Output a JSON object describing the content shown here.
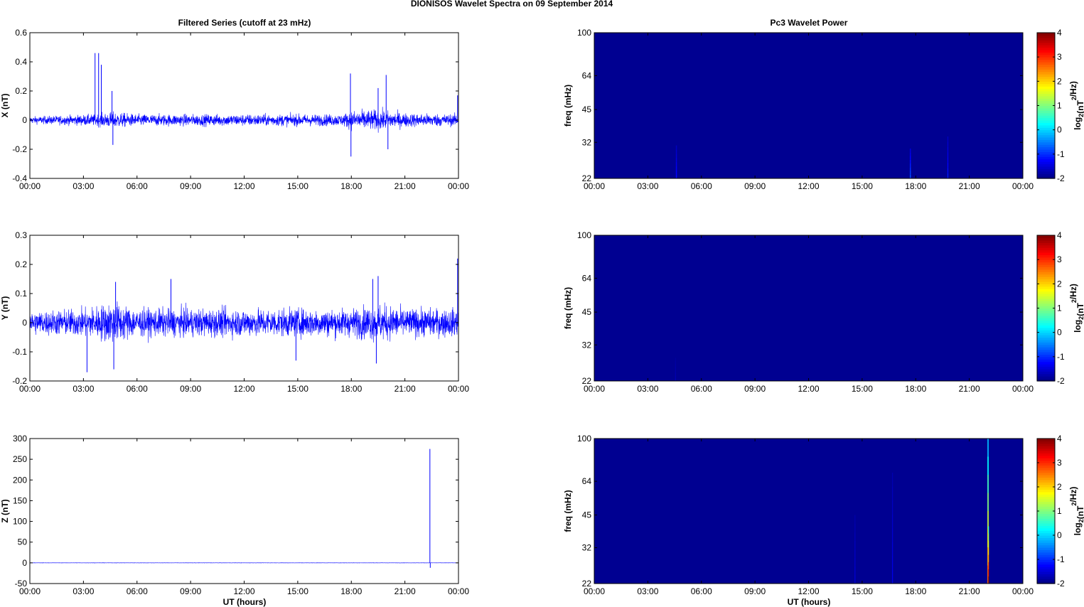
{
  "figure": {
    "title": "DIONISOS Wavelet Spectra on 09 September 2014",
    "left_title": "Filtered Series (cutoff at 23 mHz)",
    "right_title": "Pc3 Wavelet Power",
    "xlabel": "UT (hours)"
  },
  "chart_data": [
    {
      "type": "line",
      "panel": "X",
      "ylabel": "X (nT)",
      "color": "#0000ff",
      "xlim": [
        0,
        24
      ],
      "ylim": [
        -0.4,
        0.6
      ],
      "x_ticks": [
        "00:00",
        "03:00",
        "06:00",
        "09:00",
        "12:00",
        "15:00",
        "18:00",
        "21:00",
        "00:00"
      ],
      "y_ticks": [
        "-0.4",
        "-0.2",
        "0",
        "0.2",
        "0.4",
        "0.6"
      ],
      "y_tick_values": [
        -0.4,
        -0.2,
        0,
        0.2,
        0.4,
        0.6
      ],
      "noise_amplitude": 0.035,
      "envelope": [
        [
          0,
          0.03
        ],
        [
          2,
          0.04
        ],
        [
          3.7,
          0.05
        ],
        [
          4.6,
          0.07
        ],
        [
          6,
          0.05
        ],
        [
          9,
          0.05
        ],
        [
          12,
          0.05
        ],
        [
          15,
          0.05
        ],
        [
          17.5,
          0.05
        ],
        [
          18,
          0.08
        ],
        [
          19.5,
          0.09
        ],
        [
          21,
          0.06
        ],
        [
          24,
          0.05
        ]
      ],
      "spikes": [
        [
          3.65,
          0.46
        ],
        [
          3.85,
          0.46
        ],
        [
          4.0,
          0.38
        ],
        [
          4.6,
          0.2
        ],
        [
          4.65,
          -0.17
        ],
        [
          17.95,
          0.32
        ],
        [
          17.98,
          -0.25
        ],
        [
          19.5,
          0.22
        ],
        [
          19.95,
          0.31
        ],
        [
          20.05,
          -0.2
        ],
        [
          23.95,
          0.17
        ]
      ]
    },
    {
      "type": "line",
      "panel": "Y",
      "ylabel": "Y (nT)",
      "color": "#0000ff",
      "xlim": [
        0,
        24
      ],
      "ylim": [
        -0.2,
        0.3
      ],
      "x_ticks": [
        "00:00",
        "03:00",
        "06:00",
        "09:00",
        "12:00",
        "15:00",
        "18:00",
        "21:00",
        "00:00"
      ],
      "y_ticks": [
        "-0.2",
        "-0.1",
        "0",
        "0.1",
        "0.2",
        "0.3"
      ],
      "y_tick_values": [
        -0.2,
        -0.1,
        0,
        0.1,
        0.2,
        0.3
      ],
      "noise_amplitude": 0.05,
      "envelope": [
        [
          0,
          0.05
        ],
        [
          3,
          0.06
        ],
        [
          4.7,
          0.09
        ],
        [
          6,
          0.06
        ],
        [
          9,
          0.06
        ],
        [
          12,
          0.06
        ],
        [
          15,
          0.06
        ],
        [
          18,
          0.06
        ],
        [
          19.6,
          0.08
        ],
        [
          21,
          0.06
        ],
        [
          24,
          0.06
        ]
      ],
      "spikes": [
        [
          3.2,
          -0.17
        ],
        [
          4.8,
          0.14
        ],
        [
          4.7,
          -0.16
        ],
        [
          7.9,
          0.15
        ],
        [
          14.9,
          -0.13
        ],
        [
          19.2,
          0.15
        ],
        [
          19.5,
          0.16
        ],
        [
          19.4,
          -0.14
        ],
        [
          23.95,
          0.22
        ]
      ]
    },
    {
      "type": "line",
      "panel": "Z",
      "ylabel": "Z (nT)",
      "color": "#0000ff",
      "xlim": [
        0,
        24
      ],
      "ylim": [
        -50,
        300
      ],
      "x_ticks": [
        "00:00",
        "03:00",
        "06:00",
        "09:00",
        "12:00",
        "15:00",
        "18:00",
        "21:00",
        "00:00"
      ],
      "y_ticks": [
        "-50",
        "0",
        "50",
        "100",
        "150",
        "200",
        "250",
        "300"
      ],
      "y_tick_values": [
        -50,
        0,
        50,
        100,
        150,
        200,
        250,
        300
      ],
      "noise_amplitude": 0.4,
      "envelope": [
        [
          0,
          0.4
        ],
        [
          24,
          0.4
        ]
      ],
      "spikes": [
        [
          22.4,
          275
        ],
        [
          22.42,
          -12
        ]
      ]
    },
    {
      "type": "heatmap",
      "panel": "X",
      "ylabel": "freq (mHz)",
      "colorbar_label": "log2(nT²/Hz)",
      "y_scale": "log",
      "xlim": [
        0,
        24
      ],
      "ylim": [
        22,
        100
      ],
      "clim": [
        -2,
        4
      ],
      "x_ticks": [
        "00:00",
        "03:00",
        "06:00",
        "09:00",
        "12:00",
        "15:00",
        "18:00",
        "21:00",
        "00:00"
      ],
      "y_ticks": [
        "22",
        "32",
        "45",
        "64",
        "100"
      ],
      "y_tick_values": [
        22,
        32,
        45,
        64,
        100
      ],
      "colorbar_ticks": [
        "-2",
        "-1",
        "0",
        "1",
        "2",
        "3",
        "4"
      ],
      "background": -1.9,
      "features": [
        [
          4.6,
          0.06,
          22,
          31,
          -1.2
        ],
        [
          17.7,
          0.06,
          22,
          30,
          -0.8
        ],
        [
          19.8,
          0.05,
          22,
          34,
          -1.1
        ]
      ]
    },
    {
      "type": "heatmap",
      "panel": "Y",
      "ylabel": "freq (mHz)",
      "colorbar_label": "log2(nT²/Hz)",
      "y_scale": "log",
      "xlim": [
        0,
        24
      ],
      "ylim": [
        22,
        100
      ],
      "clim": [
        -2,
        4
      ],
      "x_ticks": [
        "00:00",
        "03:00",
        "06:00",
        "09:00",
        "12:00",
        "15:00",
        "18:00",
        "21:00",
        "00:00"
      ],
      "y_ticks": [
        "22",
        "32",
        "45",
        "64",
        "100"
      ],
      "y_tick_values": [
        22,
        32,
        45,
        64,
        100
      ],
      "colorbar_ticks": [
        "-2",
        "-1",
        "0",
        "1",
        "2",
        "3",
        "4"
      ],
      "background": -1.9,
      "features": [
        [
          4.55,
          0.05,
          22,
          28,
          -1.7
        ]
      ]
    },
    {
      "type": "heatmap",
      "panel": "Z",
      "ylabel": "freq (mHz)",
      "colorbar_label": "log2(nT²/Hz)",
      "y_scale": "log",
      "xlim": [
        0,
        24
      ],
      "ylim": [
        22,
        100
      ],
      "clim": [
        -2,
        4
      ],
      "x_ticks": [
        "00:00",
        "03:00",
        "06:00",
        "09:00",
        "12:00",
        "15:00",
        "18:00",
        "21:00",
        "00:00"
      ],
      "y_ticks": [
        "22",
        "32",
        "45",
        "64",
        "100"
      ],
      "y_tick_values": [
        22,
        32,
        45,
        64,
        100
      ],
      "colorbar_ticks": [
        "-2",
        "-1",
        "0",
        "1",
        "2",
        "3",
        "4"
      ],
      "background": -1.9,
      "features": [
        [
          14.6,
          0.05,
          22,
          45,
          -1.5
        ],
        [
          16.7,
          0.05,
          22,
          70,
          -1.4
        ],
        [
          22.05,
          0.07,
          22,
          100,
          2.6
        ],
        [
          22.08,
          0.04,
          22,
          40,
          4.0
        ]
      ]
    }
  ]
}
